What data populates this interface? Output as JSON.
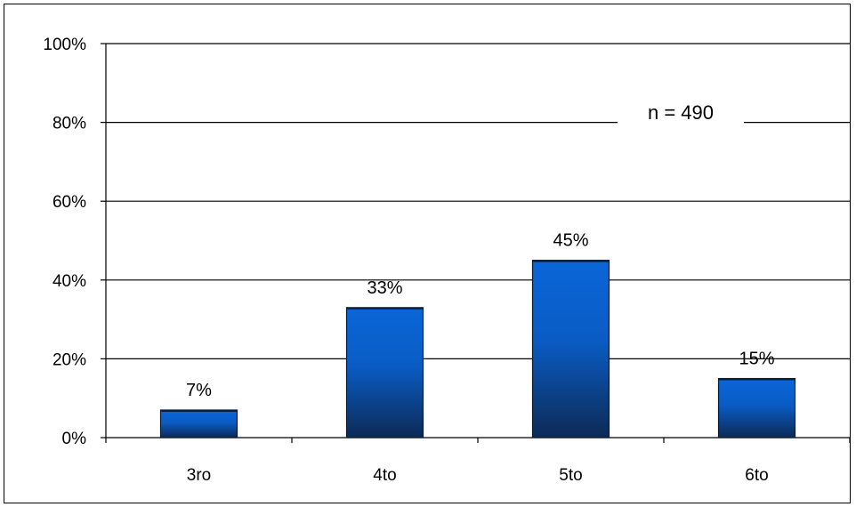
{
  "chart_data": {
    "type": "bar",
    "categories": [
      "3ro",
      "4to",
      "5to",
      "6to"
    ],
    "values": [
      7,
      33,
      45,
      15
    ],
    "data_labels": [
      "7%",
      "33%",
      "45%",
      "15%"
    ],
    "ylim": [
      0,
      100
    ],
    "yticks": [
      0,
      20,
      40,
      60,
      80,
      100
    ],
    "ytick_labels": [
      "0%",
      "20%",
      "40%",
      "60%",
      "80%",
      "100%"
    ],
    "grid": true,
    "annotation": "n = 490",
    "colors": {
      "bar_top": "#0a66d8",
      "bar_bottom": "#0c2a56",
      "grid": "#000000"
    }
  }
}
